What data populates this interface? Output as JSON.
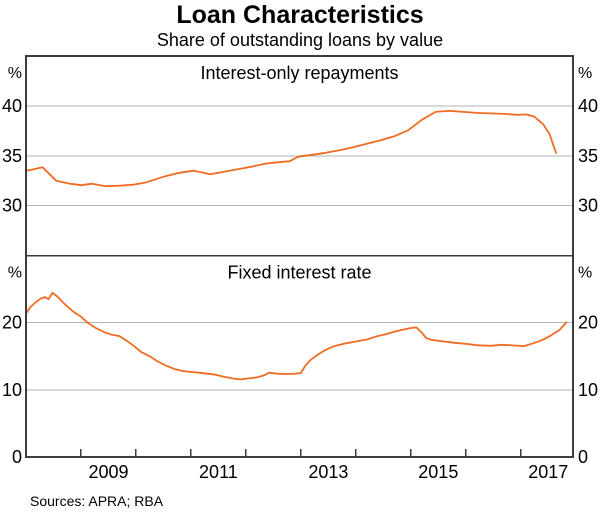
{
  "title": "Loan Characteristics",
  "subtitle": "Share of outstanding loans by value",
  "sources": "Sources: APRA; RBA",
  "colors": {
    "line": "#F06C23",
    "axis": "#3D3D3D",
    "grid": "#B3B3B3",
    "text": "#000000",
    "background": "#FFFFFF"
  },
  "chart_data": {
    "type": "line",
    "title": "Loan Characteristics",
    "subtitle": "Share of outstanding loans by value",
    "x_axis": {
      "xlim": [
        2008.0,
        2017.95
      ],
      "ticks": [
        2009,
        2010,
        2011,
        2012,
        2013,
        2014,
        2015,
        2016,
        2017
      ],
      "labels": [
        {
          "text": "2009",
          "x": 2009.5
        },
        {
          "text": "2011",
          "x": 2011.5
        },
        {
          "text": "2013",
          "x": 2013.5
        },
        {
          "text": "2015",
          "x": 2015.5
        },
        {
          "text": "2017",
          "x": 2017.5
        }
      ]
    },
    "panels": [
      {
        "panel_title": "Interest-only repayments",
        "unit_left": "%",
        "unit_right": "%",
        "ylim": [
          25,
          45
        ],
        "yticks": [
          {
            "value": 30,
            "gridline": true
          },
          {
            "value": 35,
            "gridline": true
          },
          {
            "value": 40,
            "gridline": true
          }
        ],
        "series": [
          {
            "name": "Interest-only repayments share",
            "color": "#F06C23",
            "points": [
              [
                2008.0,
                33.5
              ],
              [
                2008.1,
                33.6
              ],
              [
                2008.3,
                33.85
              ],
              [
                2008.55,
                32.5
              ],
              [
                2008.8,
                32.2
              ],
              [
                2009.0,
                32.05
              ],
              [
                2009.2,
                32.2
              ],
              [
                2009.45,
                31.95
              ],
              [
                2009.7,
                32.0
              ],
              [
                2009.95,
                32.1
              ],
              [
                2010.2,
                32.35
              ],
              [
                2010.5,
                32.9
              ],
              [
                2010.75,
                33.25
              ],
              [
                2011.05,
                33.5
              ],
              [
                2011.35,
                33.15
              ],
              [
                2011.6,
                33.4
              ],
              [
                2011.85,
                33.65
              ],
              [
                2012.1,
                33.9
              ],
              [
                2012.35,
                34.2
              ],
              [
                2012.6,
                34.35
              ],
              [
                2012.8,
                34.45
              ],
              [
                2012.95,
                34.9
              ],
              [
                2013.2,
                35.1
              ],
              [
                2013.45,
                35.3
              ],
              [
                2013.7,
                35.55
              ],
              [
                2013.95,
                35.85
              ],
              [
                2014.2,
                36.2
              ],
              [
                2014.45,
                36.55
              ],
              [
                2014.7,
                36.95
              ],
              [
                2014.95,
                37.55
              ],
              [
                2015.2,
                38.6
              ],
              [
                2015.45,
                39.4
              ],
              [
                2015.7,
                39.5
              ],
              [
                2015.95,
                39.4
              ],
              [
                2016.2,
                39.3
              ],
              [
                2016.45,
                39.25
              ],
              [
                2016.7,
                39.2
              ],
              [
                2016.95,
                39.1
              ],
              [
                2017.1,
                39.15
              ],
              [
                2017.25,
                38.9
              ],
              [
                2017.4,
                38.2
              ],
              [
                2017.52,
                37.2
              ],
              [
                2017.64,
                35.3
              ]
            ]
          }
        ]
      },
      {
        "panel_title": "Fixed interest rate",
        "unit_left": "%",
        "unit_right": "%",
        "ylim": [
          0,
          30
        ],
        "yticks": [
          {
            "value": 0,
            "gridline": false
          },
          {
            "value": 10,
            "gridline": true
          },
          {
            "value": 20,
            "gridline": true
          }
        ],
        "series": [
          {
            "name": "Fixed interest rate share",
            "color": "#F06C23",
            "points": [
              [
                2008.0,
                21.4
              ],
              [
                2008.08,
                22.3
              ],
              [
                2008.17,
                23.0
              ],
              [
                2008.27,
                23.6
              ],
              [
                2008.35,
                23.8
              ],
              [
                2008.41,
                23.5
              ],
              [
                2008.48,
                24.45
              ],
              [
                2008.57,
                23.9
              ],
              [
                2008.7,
                22.8
              ],
              [
                2008.85,
                21.7
              ],
              [
                2009.0,
                20.9
              ],
              [
                2009.12,
                20.0
              ],
              [
                2009.27,
                19.2
              ],
              [
                2009.42,
                18.6
              ],
              [
                2009.57,
                18.2
              ],
              [
                2009.7,
                18.0
              ],
              [
                2009.85,
                17.2
              ],
              [
                2009.97,
                16.5
              ],
              [
                2010.1,
                15.6
              ],
              [
                2010.25,
                15.0
              ],
              [
                2010.4,
                14.2
              ],
              [
                2010.55,
                13.6
              ],
              [
                2010.7,
                13.1
              ],
              [
                2010.85,
                12.8
              ],
              [
                2011.0,
                12.65
              ],
              [
                2011.15,
                12.55
              ],
              [
                2011.3,
                12.4
              ],
              [
                2011.45,
                12.25
              ],
              [
                2011.6,
                11.95
              ],
              [
                2011.75,
                11.7
              ],
              [
                2011.9,
                11.55
              ],
              [
                2012.05,
                11.7
              ],
              [
                2012.2,
                11.85
              ],
              [
                2012.33,
                12.15
              ],
              [
                2012.42,
                12.55
              ],
              [
                2012.57,
                12.4
              ],
              [
                2012.75,
                12.35
              ],
              [
                2012.9,
                12.4
              ],
              [
                2013.0,
                12.5
              ],
              [
                2013.08,
                13.6
              ],
              [
                2013.17,
                14.4
              ],
              [
                2013.3,
                15.2
              ],
              [
                2013.45,
                15.95
              ],
              [
                2013.6,
                16.5
              ],
              [
                2013.8,
                16.9
              ],
              [
                2014.0,
                17.2
              ],
              [
                2014.2,
                17.5
              ],
              [
                2014.35,
                17.9
              ],
              [
                2014.55,
                18.3
              ],
              [
                2014.7,
                18.65
              ],
              [
                2014.85,
                18.95
              ],
              [
                2015.0,
                19.2
              ],
              [
                2015.1,
                19.3
              ],
              [
                2015.2,
                18.5
              ],
              [
                2015.28,
                17.7
              ],
              [
                2015.37,
                17.45
              ],
              [
                2015.55,
                17.25
              ],
              [
                2015.8,
                17.0
              ],
              [
                2016.0,
                16.85
              ],
              [
                2016.2,
                16.65
              ],
              [
                2016.45,
                16.55
              ],
              [
                2016.65,
                16.7
              ],
              [
                2016.9,
                16.6
              ],
              [
                2017.05,
                16.5
              ],
              [
                2017.2,
                16.85
              ],
              [
                2017.4,
                17.45
              ],
              [
                2017.55,
                18.1
              ],
              [
                2017.7,
                18.9
              ],
              [
                2017.83,
                20.05
              ]
            ]
          }
        ]
      }
    ]
  }
}
